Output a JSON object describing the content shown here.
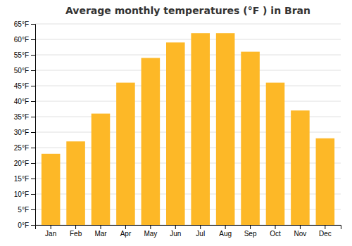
{
  "chart_data": {
    "type": "bar",
    "title": "Average monthly temperatures (°F ) in Bran",
    "categories": [
      "Jan",
      "Feb",
      "Mar",
      "Apr",
      "May",
      "Jun",
      "Jul",
      "Aug",
      "Sep",
      "Oct",
      "Nov",
      "Dec"
    ],
    "values": [
      23,
      27,
      36,
      46,
      54,
      59,
      62,
      62,
      56,
      46,
      37,
      28
    ],
    "color": "#FDB827",
    "ylim": [
      0,
      65
    ],
    "yticks": [
      {
        "value": 0,
        "label": "0°F"
      },
      {
        "value": 5,
        "label": "5°F"
      },
      {
        "value": 10,
        "label": "10°F"
      },
      {
        "value": 15,
        "label": "15°F"
      },
      {
        "value": 20,
        "label": "20°F"
      },
      {
        "value": 25,
        "label": "25°F"
      },
      {
        "value": 30,
        "label": "30°F"
      },
      {
        "value": 35,
        "label": "35°F"
      },
      {
        "value": 40,
        "label": "40°F"
      },
      {
        "value": 45,
        "label": "45°F"
      },
      {
        "value": 50,
        "label": "50°F"
      },
      {
        "value": 55,
        "label": "55°F"
      },
      {
        "value": 60,
        "label": "60°F"
      },
      {
        "value": 65,
        "label": "65°F"
      }
    ],
    "grid": true
  }
}
